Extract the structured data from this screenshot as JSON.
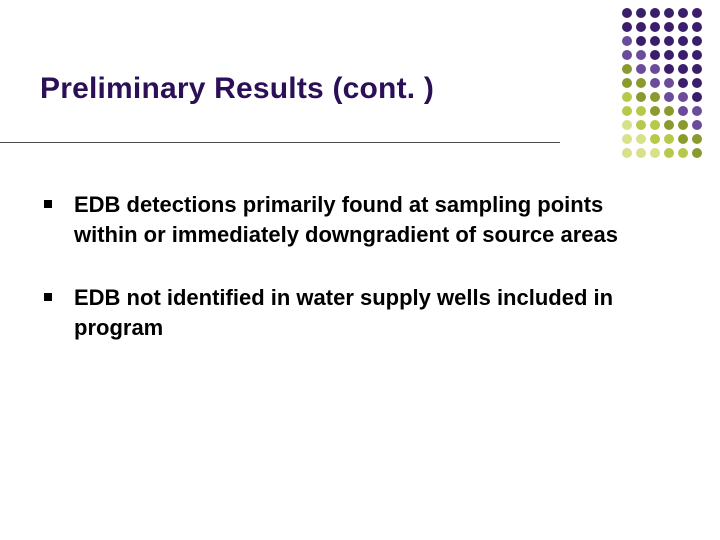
{
  "slide": {
    "title": "Preliminary Results (cont. )",
    "title_color": "#2b0f57",
    "title_fontsize": 30,
    "underline_color": "#4d4d4d",
    "background_color": "#ffffff",
    "bullets": [
      {
        "text": "EDB detections primarily found at sampling points within or immediately downgradient of source areas"
      },
      {
        "text": "EDB not identified in water supply wells included in program"
      }
    ],
    "bullet_fontsize": 22,
    "bullet_color": "#000000",
    "bullet_marker_color": "#000000"
  },
  "decoration": {
    "type": "dot-grid",
    "cols": 6,
    "rows": 11,
    "dot_size": 10,
    "gap": 4,
    "colors": {
      "dark_purple": "#3a1d6b",
      "mid_purple": "#6b4c9a",
      "olive": "#8a9a2e",
      "lime": "#b8c84a",
      "pale": "#d8e08a"
    },
    "grid": [
      [
        "dark_purple",
        "dark_purple",
        "dark_purple",
        "dark_purple",
        "dark_purple",
        "dark_purple"
      ],
      [
        "dark_purple",
        "dark_purple",
        "dark_purple",
        "dark_purple",
        "dark_purple",
        "dark_purple"
      ],
      [
        "mid_purple",
        "dark_purple",
        "dark_purple",
        "dark_purple",
        "dark_purple",
        "dark_purple"
      ],
      [
        "mid_purple",
        "mid_purple",
        "dark_purple",
        "dark_purple",
        "dark_purple",
        "dark_purple"
      ],
      [
        "olive",
        "mid_purple",
        "mid_purple",
        "dark_purple",
        "dark_purple",
        "dark_purple"
      ],
      [
        "olive",
        "olive",
        "mid_purple",
        "mid_purple",
        "dark_purple",
        "dark_purple"
      ],
      [
        "lime",
        "olive",
        "olive",
        "mid_purple",
        "mid_purple",
        "dark_purple"
      ],
      [
        "lime",
        "lime",
        "olive",
        "olive",
        "mid_purple",
        "mid_purple"
      ],
      [
        "pale",
        "lime",
        "lime",
        "olive",
        "olive",
        "mid_purple"
      ],
      [
        "pale",
        "pale",
        "lime",
        "lime",
        "olive",
        "olive"
      ],
      [
        "pale",
        "pale",
        "pale",
        "lime",
        "lime",
        "olive"
      ]
    ]
  }
}
